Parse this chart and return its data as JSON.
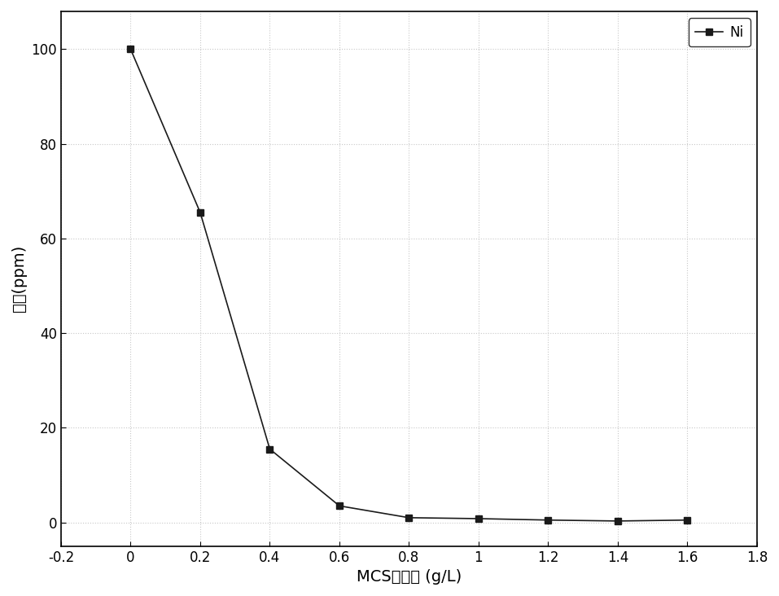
{
  "x": [
    0.0,
    0.2,
    0.4,
    0.6,
    0.8,
    1.0,
    1.2,
    1.4,
    1.6
  ],
  "y": [
    100.0,
    65.5,
    15.5,
    3.5,
    1.0,
    0.8,
    0.5,
    0.3,
    0.5
  ],
  "xlabel": "MCS添加量 (g/L)",
  "ylabel": "浓度(ppm)",
  "xlim": [
    -0.2,
    1.8
  ],
  "ylim": [
    -5,
    108
  ],
  "xticks": [
    -0.2,
    0.0,
    0.2,
    0.4,
    0.6,
    0.8,
    1.0,
    1.2,
    1.4,
    1.6,
    1.8
  ],
  "yticks": [
    0,
    20,
    40,
    60,
    80,
    100
  ],
  "legend_label": "Ni",
  "line_color": "#1a1a1a",
  "marker": "s",
  "marker_size": 6,
  "background_color": "#ffffff",
  "dot_color": "#c8c8c8",
  "legend_fontsize": 12,
  "axis_label_fontsize": 14,
  "tick_fontsize": 12
}
